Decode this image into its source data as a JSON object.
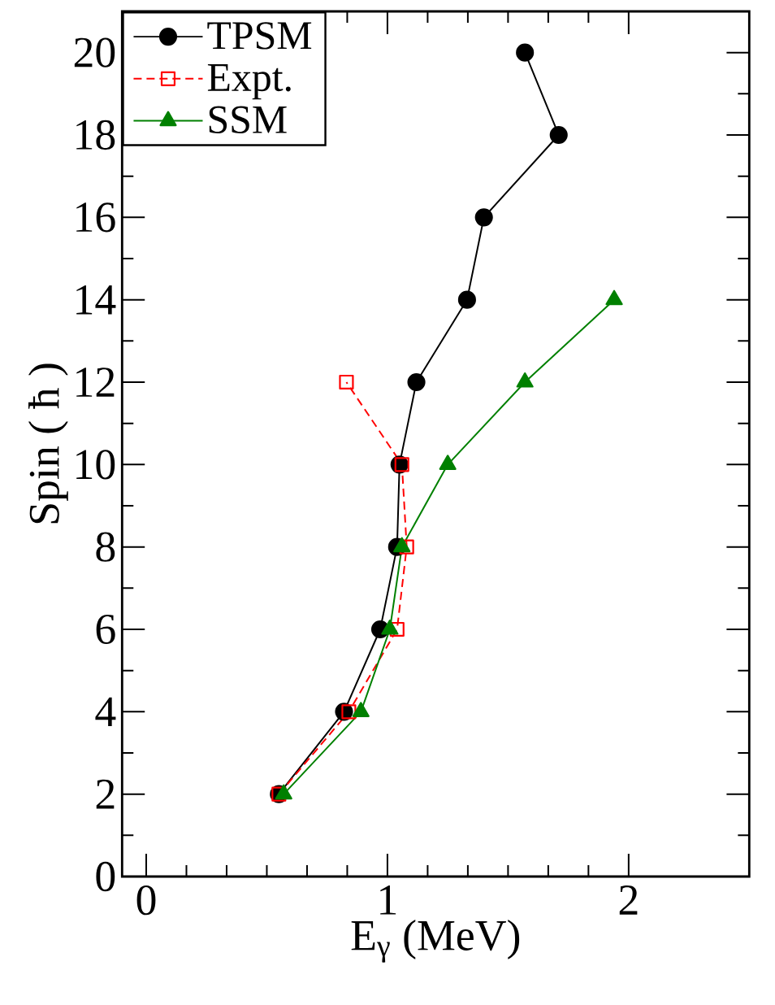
{
  "chart_data": {
    "type": "line",
    "xlabel": "E$_{γ}$ (MeV)",
    "ylabel": "Spin ( ħ )",
    "xlim": [
      -0.1,
      2.5
    ],
    "ylim": [
      0,
      21
    ],
    "xticks": [
      0,
      1,
      2
    ],
    "yticks": [
      0,
      2,
      4,
      6,
      8,
      10,
      12,
      14,
      16,
      18,
      20
    ],
    "grid": false,
    "legend": "top left",
    "series": [
      {
        "name": "TPSM",
        "color": "#000000",
        "marker": "circle",
        "line_style": "solid",
        "x": [
          0.55,
          0.82,
          0.97,
          1.04,
          1.05,
          1.12,
          1.33,
          1.4,
          1.71,
          1.57
        ],
        "values": [
          2,
          4,
          6,
          8,
          10,
          12,
          14,
          16,
          18,
          20
        ]
      },
      {
        "name": "Expt.",
        "color": "#ff0000",
        "marker": "square",
        "line_style": "dashed",
        "x": [
          0.55,
          0.84,
          1.04,
          1.08,
          1.06,
          0.83
        ],
        "values": [
          2,
          4,
          6,
          8,
          10,
          12
        ]
      },
      {
        "name": "SSM",
        "color": "#008000",
        "marker": "triangle",
        "line_style": "solid",
        "x": [
          0.57,
          0.89,
          1.01,
          1.06,
          1.25,
          1.57,
          1.94
        ],
        "values": [
          2,
          4,
          6,
          8,
          10,
          12,
          14
        ]
      }
    ]
  }
}
